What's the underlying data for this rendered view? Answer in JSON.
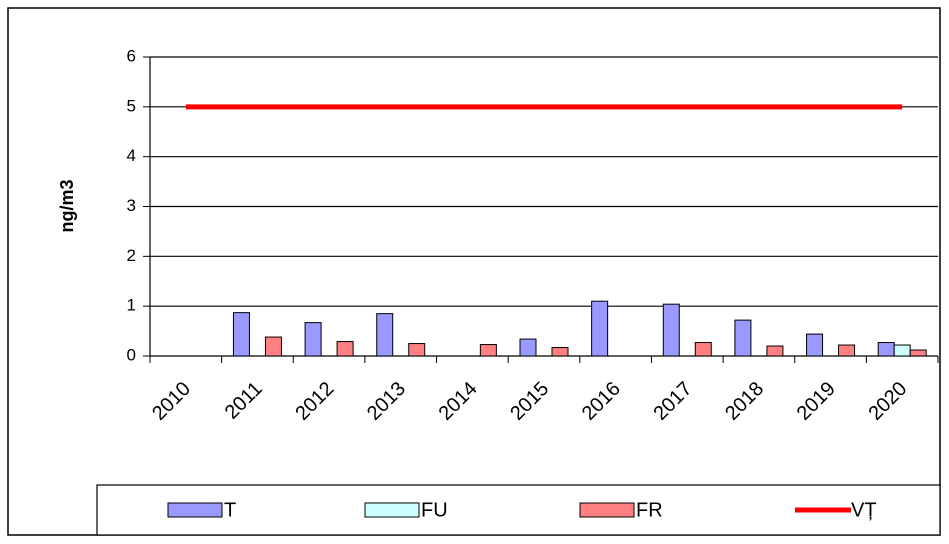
{
  "chart_data": {
    "type": "bar",
    "ylabel": "ng/m3",
    "categories": [
      "2010",
      "2011",
      "2012",
      "2013",
      "2014",
      "2015",
      "2016",
      "2017",
      "2018",
      "2019",
      "2020"
    ],
    "series": [
      {
        "name": "T",
        "color": "#9999ff",
        "values": [
          null,
          0.87,
          0.67,
          0.85,
          null,
          0.34,
          1.1,
          1.04,
          0.72,
          0.44,
          0.27
        ]
      },
      {
        "name": "FU",
        "color": "#ccffff",
        "values": [
          null,
          null,
          null,
          null,
          null,
          null,
          null,
          null,
          null,
          null,
          0.22
        ]
      },
      {
        "name": "FR",
        "color": "#ff8080",
        "values": [
          null,
          0.38,
          0.29,
          0.25,
          0.23,
          0.17,
          null,
          0.27,
          0.2,
          0.22,
          0.12
        ]
      },
      {
        "name": "VȚ",
        "color": "#ff0000",
        "type": "line",
        "values": [
          5,
          5,
          5,
          5,
          5,
          5,
          5,
          5,
          5,
          5,
          5
        ]
      }
    ],
    "ylim": [
      0,
      6
    ],
    "yticks": [
      0,
      1,
      2,
      3,
      4,
      5,
      6
    ],
    "grid": true,
    "legend": "bottom"
  }
}
